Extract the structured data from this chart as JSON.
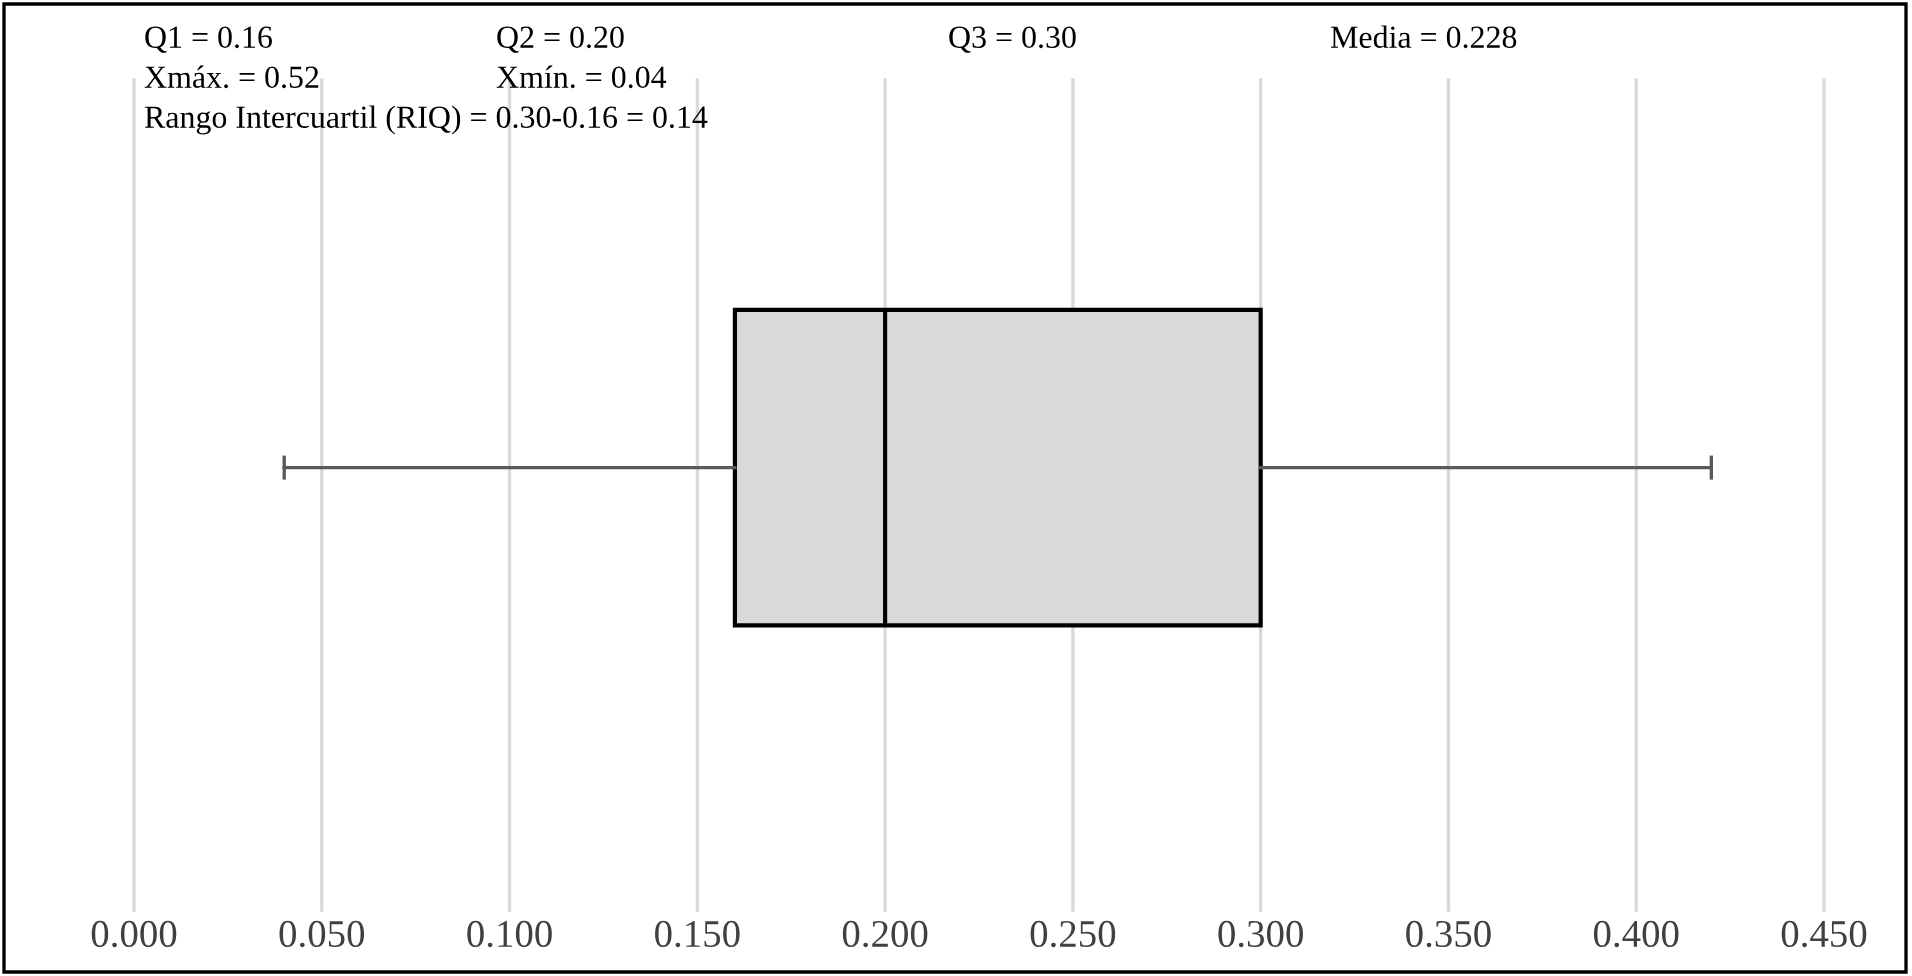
{
  "chart_data": {
    "type": "box",
    "orientation": "horizontal",
    "categories": [
      null
    ],
    "boxes": [
      {
        "low": 0.04,
        "q1": 0.16,
        "median": 0.2,
        "q3": 0.3,
        "high": 0.42
      }
    ],
    "color": "#d9d9d9",
    "xlim": [
      0,
      0.45
    ],
    "xticks": [
      {
        "value": 0,
        "label": "0.000"
      },
      {
        "value": 0.05,
        "label": "0.050"
      },
      {
        "value": 0.1,
        "label": "0.100"
      },
      {
        "value": 0.15,
        "label": "0.150"
      },
      {
        "value": 0.2,
        "label": "0.200"
      },
      {
        "value": 0.25,
        "label": "0.250"
      },
      {
        "value": 0.3,
        "label": "0.300"
      },
      {
        "value": 0.35,
        "label": "0.350"
      },
      {
        "value": 0.4,
        "label": "0.400"
      },
      {
        "value": 0.45,
        "label": "0.450"
      }
    ],
    "tick_labels": "x",
    "grid": "x",
    "annotations": [
      "Q1 = 0.16",
      "Q2 = 0.20",
      "Q3 = 0.30",
      "Media = 0.228",
      "Xmáx. = 0.52",
      "Xmín. = 0.04",
      "Rango Intercuartil (RIQ) = 0.30-0.16 = 0.14"
    ]
  }
}
